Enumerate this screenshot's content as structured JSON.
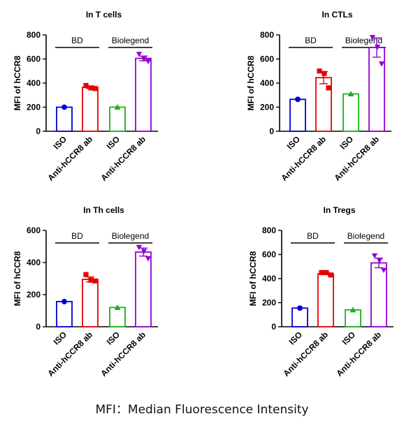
{
  "caption": "MFI：Median Fluorescence Intensity",
  "brackets": [
    "BD",
    "Biolegend"
  ],
  "chart_data": [
    {
      "type": "bar",
      "title": "In T cells",
      "ylabel": "MFI of hCCR8",
      "ylim": [
        0,
        800
      ],
      "yticks": [
        0,
        200,
        400,
        600,
        800
      ],
      "categories": [
        "ISO",
        "Anti-hCCR8 ab",
        "ISO",
        "Anti-hCCR8 ab"
      ],
      "values": [
        200,
        365,
        200,
        605
      ],
      "error": [
        0,
        10,
        0,
        20
      ],
      "points": [
        [
          200,
          200,
          200
        ],
        [
          380,
          360,
          355
        ],
        [
          200,
          200,
          200
        ],
        [
          640,
          600,
          580
        ]
      ]
    },
    {
      "type": "bar",
      "title": "In CTLs",
      "ylabel": "MFI of hCCR8",
      "ylim": [
        0,
        800
      ],
      "yticks": [
        0,
        200,
        400,
        600,
        800
      ],
      "categories": [
        "ISO",
        "Anti-hCCR8 ab",
        "ISO",
        "Anti-hCCR8 ab"
      ],
      "values": [
        265,
        445,
        310,
        695
      ],
      "error": [
        0,
        50,
        0,
        80
      ],
      "points": [
        [
          265,
          265,
          265
        ],
        [
          500,
          480,
          360
        ],
        [
          310,
          310,
          310
        ],
        [
          780,
          700,
          560
        ]
      ]
    },
    {
      "type": "bar",
      "title": "In Th cells",
      "ylabel": "MFI of hCCR8",
      "ylim": [
        0,
        600
      ],
      "yticks": [
        0,
        200,
        400,
        600
      ],
      "categories": [
        "ISO",
        "Anti-hCCR8 ab",
        "ISO",
        "Anti-hCCR8 ab"
      ],
      "values": [
        157,
        295,
        120,
        465
      ],
      "error": [
        0,
        15,
        0,
        25
      ],
      "points": [
        [
          157,
          157,
          157
        ],
        [
          325,
          290,
          285
        ],
        [
          120,
          120,
          120
        ],
        [
          495,
          470,
          425
        ]
      ]
    },
    {
      "type": "bar",
      "title": "In Tregs",
      "ylabel": "MFI of hCCR8",
      "ylim": [
        0,
        800
      ],
      "yticks": [
        0,
        200,
        400,
        600,
        800
      ],
      "categories": [
        "ISO",
        "Anti-hCCR8 ab",
        "ISO",
        "Anti-hCCR8 ab"
      ],
      "values": [
        155,
        440,
        140,
        530
      ],
      "error": [
        0,
        8,
        0,
        40
      ],
      "points": [
        [
          155,
          155,
          155
        ],
        [
          450,
          450,
          430
        ],
        [
          140,
          140,
          140
        ],
        [
          590,
          550,
          470
        ]
      ]
    }
  ],
  "colors": {
    "bars": [
      "#0000d6",
      "#e60000",
      "#18b318",
      "#9400d3"
    ],
    "axis": "#000000"
  },
  "markers": [
    "circle",
    "square",
    "triangle-up",
    "triangle-down"
  ]
}
